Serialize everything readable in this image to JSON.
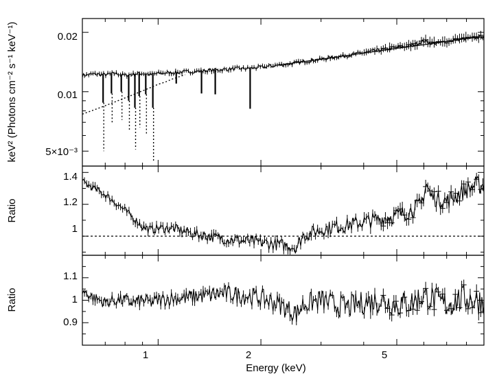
{
  "chart_data": [
    {
      "panel": "top",
      "type": "line",
      "ylabel": "keV² (Photons cm⁻² s⁻¹ keV⁻¹)",
      "xscale": "log",
      "yscale": "log",
      "xlim": [
        0.6,
        9.0
      ],
      "ylim": [
        0.0042,
        0.0235
      ],
      "yticks": [
        {
          "value": 0.02,
          "label": "0.02"
        },
        {
          "value": 0.01,
          "label": "0.01"
        },
        {
          "value": 0.005,
          "label": "5×10⁻³"
        }
      ],
      "series": [
        {
          "kind": "data",
          "x": [
            0.6,
            0.65,
            0.7,
            0.75,
            0.8,
            0.85,
            0.9,
            0.95,
            1.0,
            1.1,
            1.2,
            1.3,
            1.4,
            1.5,
            1.6,
            1.7,
            1.8,
            2.0,
            2.2,
            2.4,
            2.6,
            2.8,
            3.0,
            3.3,
            3.6,
            4.0,
            4.5,
            5.0,
            5.5,
            6.0,
            6.3,
            6.6,
            7.0,
            7.5,
            8.0,
            8.5,
            9.0
          ],
          "y": [
            0.0121,
            0.0123,
            0.0122,
            0.0124,
            0.0121,
            0.0123,
            0.0124,
            0.0122,
            0.0124,
            0.0125,
            0.0126,
            0.0127,
            0.0128,
            0.0129,
            0.013,
            0.0131,
            0.0131,
            0.0133,
            0.0136,
            0.0138,
            0.0141,
            0.0144,
            0.0146,
            0.015,
            0.0153,
            0.0158,
            0.0163,
            0.0168,
            0.0171,
            0.0181,
            0.0177,
            0.0176,
            0.018,
            0.0184,
            0.0186,
            0.0188,
            0.0191
          ]
        },
        {
          "kind": "model",
          "x": [
            2.2,
            3.0,
            4.0,
            5.0,
            6.0,
            7.0,
            8.0,
            9.0
          ],
          "y": [
            0.0136,
            0.0146,
            0.0157,
            0.0166,
            0.0173,
            0.018,
            0.0186,
            0.019
          ]
        },
        {
          "kind": "continuum-dotted",
          "x": [
            0.6,
            0.65,
            0.7,
            0.75,
            0.8,
            0.85,
            0.9,
            0.95,
            1.0,
            1.05,
            1.1,
            1.15,
            1.2
          ],
          "y": [
            0.0077,
            0.0081,
            0.0085,
            0.0089,
            0.0093,
            0.0097,
            0.0101,
            0.0105,
            0.0109,
            0.0112,
            0.0116,
            0.0119,
            0.0122
          ]
        }
      ],
      "absorption_lines": [
        {
          "x": 0.69,
          "depth_to": 0.0088,
          "dotted_to": 0.005
        },
        {
          "x": 0.73,
          "depth_to": 0.0098,
          "dotted_to": 0.007
        },
        {
          "x": 0.78,
          "depth_to": 0.01,
          "dotted_to": 0.0072
        },
        {
          "x": 0.82,
          "depth_to": 0.009,
          "dotted_to": 0.0063
        },
        {
          "x": 0.855,
          "depth_to": 0.0083,
          "dotted_to": 0.0051
        },
        {
          "x": 0.88,
          "depth_to": 0.0095,
          "dotted_to": 0.0066
        },
        {
          "x": 0.92,
          "depth_to": 0.0097,
          "dotted_to": 0.006
        },
        {
          "x": 0.965,
          "depth_to": 0.0083,
          "dotted_to": 0.0044
        },
        {
          "x": 1.13,
          "depth_to": 0.011
        },
        {
          "x": 1.34,
          "depth_to": 0.0098
        },
        {
          "x": 1.47,
          "depth_to": 0.0097
        },
        {
          "x": 1.86,
          "depth_to": 0.0082
        }
      ]
    },
    {
      "panel": "middle",
      "type": "line",
      "ylabel": "Ratio",
      "xscale": "log",
      "xlim": [
        0.6,
        9.0
      ],
      "ylim": [
        0.88,
        1.44
      ],
      "yticks": [
        {
          "value": 1.4,
          "label": "1.4"
        },
        {
          "value": 1.2,
          "label": "1.2"
        },
        {
          "value": 1.0,
          "label": "1"
        }
      ],
      "reference_line": 1.0,
      "series": [
        {
          "kind": "data",
          "x": [
            0.6,
            0.65,
            0.7,
            0.75,
            0.8,
            0.85,
            0.9,
            0.95,
            1.0,
            1.1,
            1.2,
            1.3,
            1.4,
            1.5,
            1.6,
            1.8,
            2.0,
            2.2,
            2.4,
            2.55,
            2.65,
            2.8,
            3.0,
            3.3,
            3.6,
            4.0,
            4.5,
            5.0,
            5.5,
            5.9,
            6.1,
            6.3,
            6.6,
            7.0,
            7.5,
            8.0,
            8.5,
            9.0
          ],
          "y": [
            1.34,
            1.3,
            1.26,
            1.21,
            1.16,
            1.11,
            1.06,
            1.04,
            1.05,
            1.05,
            1.03,
            1.01,
            1.0,
            0.99,
            0.98,
            0.97,
            0.96,
            0.95,
            0.94,
            0.93,
            1.0,
            1.02,
            1.04,
            1.06,
            1.07,
            1.09,
            1.11,
            1.13,
            1.16,
            1.2,
            1.33,
            1.25,
            1.23,
            1.22,
            1.26,
            1.29,
            1.32,
            1.32
          ]
        }
      ]
    },
    {
      "panel": "bottom",
      "type": "line",
      "ylabel": "Ratio",
      "xlabel": "Energy (keV)",
      "xscale": "log",
      "xlim": [
        0.6,
        9.0
      ],
      "ylim": [
        0.8,
        1.2
      ],
      "xticks": [
        {
          "value": 1,
          "label": "1"
        },
        {
          "value": 2,
          "label": "2"
        },
        {
          "value": 5,
          "label": "5"
        }
      ],
      "yticks": [
        {
          "value": 1.1,
          "label": "1.1"
        },
        {
          "value": 1.0,
          "label": "1"
        },
        {
          "value": 0.9,
          "label": "0.9"
        }
      ],
      "series": [
        {
          "kind": "data",
          "x": [
            0.6,
            0.65,
            0.7,
            0.75,
            0.8,
            0.85,
            0.9,
            0.95,
            1.0,
            1.1,
            1.2,
            1.3,
            1.4,
            1.5,
            1.6,
            1.8,
            2.0,
            2.2,
            2.4,
            2.55,
            2.65,
            2.8,
            3.0,
            3.3,
            3.6,
            4.0,
            4.5,
            5.0,
            5.5,
            6.0,
            6.5,
            7.0,
            7.5,
            8.0,
            8.5,
            9.0
          ],
          "y": [
            1.04,
            1.01,
            0.99,
            1.0,
            1.0,
            0.99,
            1.0,
            0.99,
            1.0,
            1.01,
            1.01,
            1.02,
            1.02,
            1.03,
            1.03,
            1.02,
            1.01,
            0.99,
            0.96,
            0.94,
            0.98,
            0.99,
            1.0,
            0.98,
            0.97,
            0.99,
            1.0,
            0.98,
            0.99,
            1.02,
            1.0,
            0.98,
            1.0,
            1.01,
            1.0,
            1.0
          ]
        }
      ]
    }
  ]
}
